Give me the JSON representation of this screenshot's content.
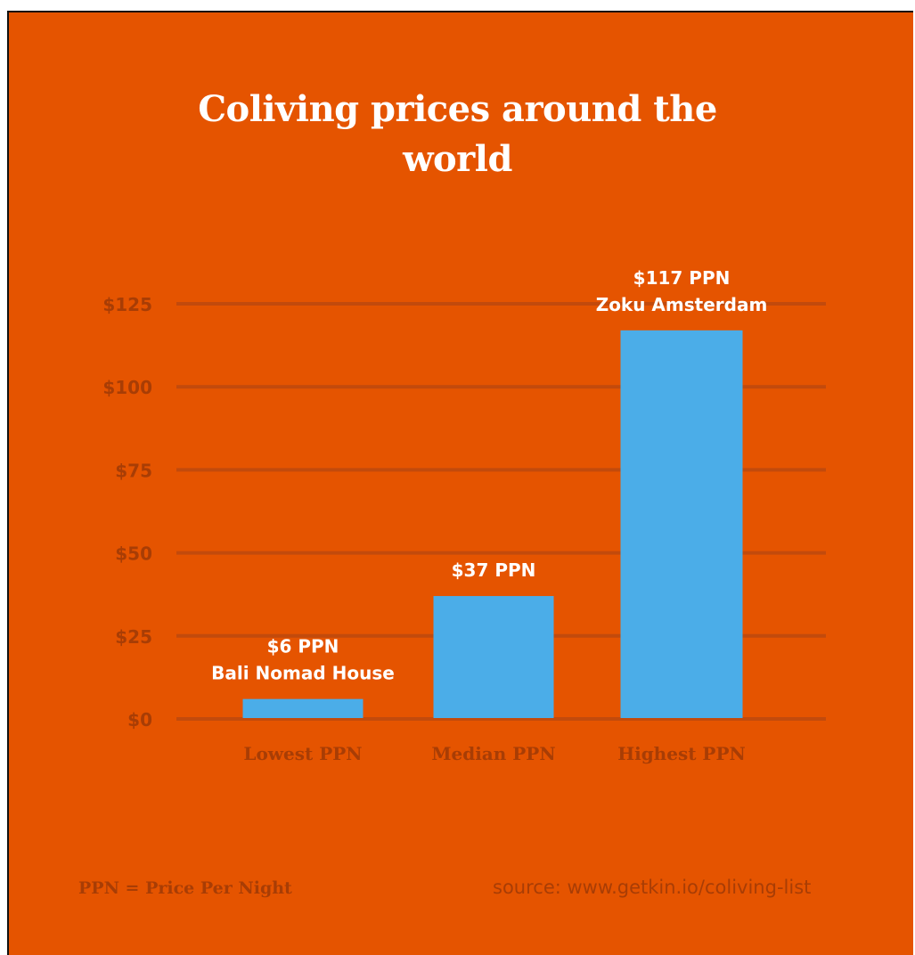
{
  "chart_data": {
    "type": "bar",
    "title_lines": [
      "Coliving prices around the",
      "world"
    ],
    "categories": [
      "Lowest PPN",
      "Median PPN",
      "Highest PPN"
    ],
    "values": [
      6,
      37,
      117
    ],
    "data_labels": [
      [
        "$6 PPN",
        "Bali Nomad House"
      ],
      [
        "$37 PPN"
      ],
      [
        "$117 PPN",
        "Zoku Amsterdam"
      ]
    ],
    "y_ticks": [
      0,
      25,
      50,
      75,
      100,
      125
    ],
    "y_tick_labels": [
      "$0",
      "$25",
      "$50",
      "$75",
      "$100",
      "$125"
    ],
    "ylim": [
      0,
      125
    ],
    "grid": true,
    "legend": "none",
    "xlabel": "",
    "ylabel": ""
  },
  "footer": {
    "note": "PPN = Price Per Night",
    "source": "source: www.getkin.io/coliving-list"
  },
  "colors": {
    "background": "#E55400",
    "bar": "#4BADE8",
    "gridline": "#C24A0C",
    "axis_text": "#A83D05",
    "label_text": "#FFFFFF"
  }
}
